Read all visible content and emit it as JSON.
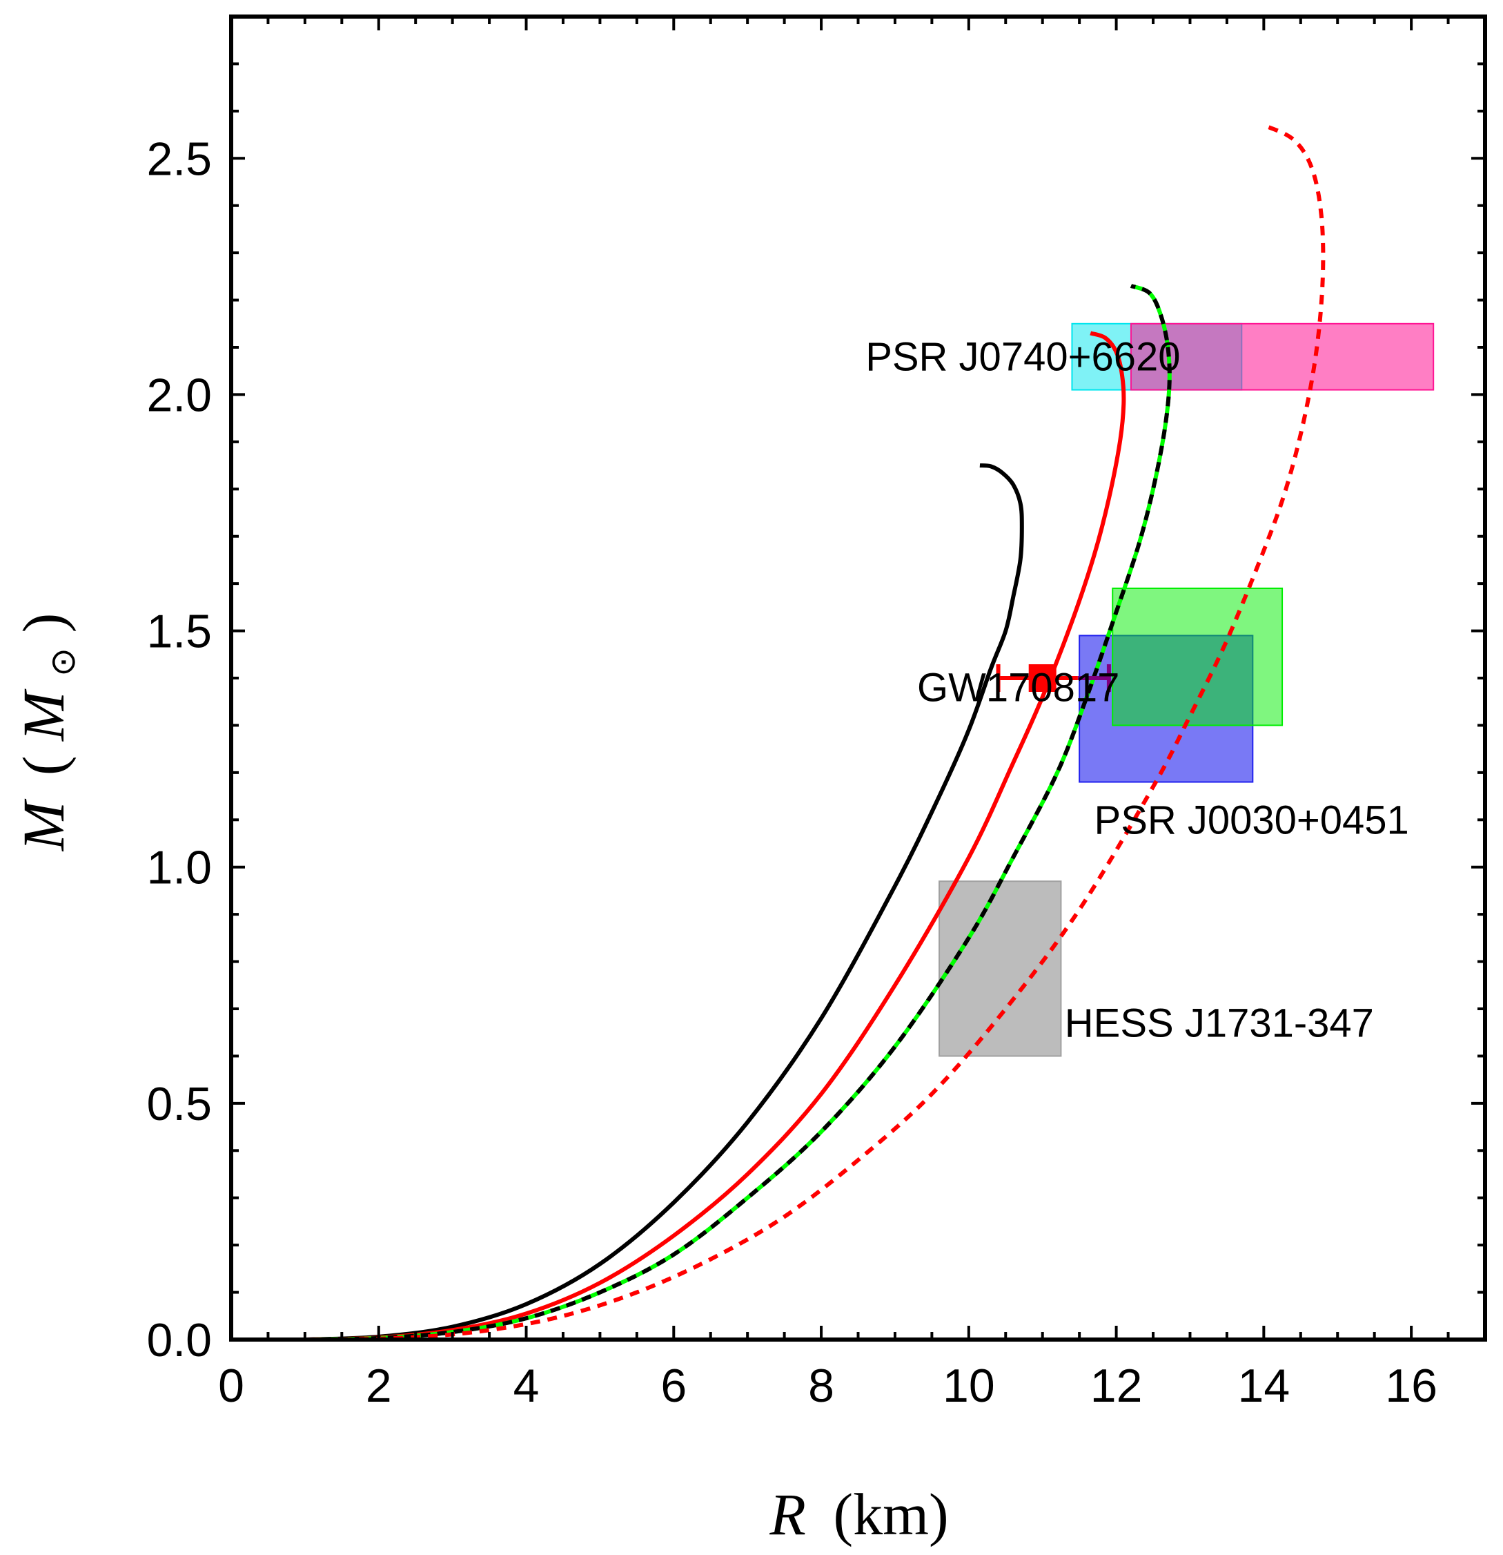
{
  "chart_data": {
    "type": "line",
    "title": "",
    "xlabel": {
      "symbol": "R",
      "unit": "(km)"
    },
    "ylabel": {
      "symbol": "M",
      "unit_open": "(",
      "unit_symbol": "M",
      "unit_sub": "⊙",
      "unit_close": ")"
    },
    "xlim": [
      0,
      17
    ],
    "ylim": [
      0,
      2.8
    ],
    "x_ticks": [
      0,
      2,
      4,
      6,
      8,
      10,
      12,
      14,
      16
    ],
    "x_tick_labels": [
      "0",
      "2",
      "4",
      "6",
      "8",
      "10",
      "12",
      "14",
      "16"
    ],
    "y_ticks": [
      0,
      0.5,
      1.0,
      1.5,
      2.0,
      2.5
    ],
    "y_tick_labels": [
      "0.0",
      "0.5",
      "1.0",
      "1.5",
      "2.0",
      "2.5"
    ],
    "grid": false,
    "regions": [
      {
        "name": "PSR J0740+6620 (a)",
        "x": [
          11.4,
          13.7
        ],
        "y": [
          2.01,
          2.15
        ],
        "color": "#00e5ee",
        "opacity": 0.5
      },
      {
        "name": "PSR J0740+6620 (b)",
        "x": [
          12.2,
          16.3
        ],
        "y": [
          2.01,
          2.15
        ],
        "color": "#ff1493",
        "opacity": 0.55
      },
      {
        "name": "PSR J0030+0451 (a)",
        "x": [
          11.5,
          13.85
        ],
        "y": [
          1.18,
          1.49
        ],
        "color": "#2020ee",
        "opacity": 0.6
      },
      {
        "name": "PSR J0030+0451 (b)",
        "x": [
          11.95,
          14.25
        ],
        "y": [
          1.3,
          1.59
        ],
        "color": "#00ee00",
        "opacity": 0.5
      },
      {
        "name": "HESS J1731-347",
        "x": [
          9.6,
          11.25
        ],
        "y": [
          0.6,
          0.97
        ],
        "color": "#a0a0a0",
        "opacity": 0.7
      }
    ],
    "errorbar": {
      "name": "GW170817",
      "x": 11.0,
      "y": 1.4,
      "xerr": [
        0.6,
        0.9
      ],
      "color": "#ff0000",
      "tail_color": "#800080"
    },
    "annotations": [
      {
        "text": "PSR J0740+6620",
        "x": 8.6,
        "y": 2.08
      },
      {
        "text": "GW170817",
        "x": 9.3,
        "y": 1.38
      },
      {
        "text": "PSR J0030+0451",
        "x": 11.7,
        "y": 1.1
      },
      {
        "text": "HESS J1731-347",
        "x": 11.3,
        "y": 0.67
      }
    ],
    "series": [
      {
        "name": "black-solid",
        "color": "#000000",
        "dash": "none",
        "x": [
          1.0,
          2.0,
          3.0,
          4.0,
          5.0,
          6.0,
          7.0,
          8.0,
          9.0,
          9.6,
          10.0,
          10.3,
          10.5,
          10.6,
          10.7,
          10.72,
          10.7,
          10.6,
          10.45,
          10.3,
          10.15
        ],
        "y": [
          0.0,
          0.006,
          0.027,
          0.075,
          0.16,
          0.29,
          0.46,
          0.68,
          0.96,
          1.15,
          1.29,
          1.42,
          1.5,
          1.57,
          1.65,
          1.72,
          1.77,
          1.81,
          1.835,
          1.848,
          1.85
        ]
      },
      {
        "name": "red-solid",
        "color": "#ff0000",
        "dash": "none",
        "x": [
          1.0,
          2.0,
          3.0,
          4.0,
          5.0,
          6.0,
          7.0,
          8.0,
          9.0,
          10.0,
          10.6,
          11.0,
          11.4,
          11.7,
          11.9,
          12.05,
          12.1,
          12.08,
          12.0,
          11.85,
          11.65
        ],
        "y": [
          0.0,
          0.004,
          0.02,
          0.055,
          0.12,
          0.22,
          0.35,
          0.52,
          0.75,
          1.02,
          1.22,
          1.36,
          1.52,
          1.66,
          1.78,
          1.9,
          1.98,
          2.04,
          2.09,
          2.12,
          2.13
        ]
      },
      {
        "name": "green-solid",
        "color": "#00ff00",
        "dash": "none",
        "x": [
          1.0,
          2.0,
          3.0,
          4.0,
          5.0,
          6.0,
          7.0,
          8.0,
          9.0,
          10.0,
          10.6,
          11.2,
          11.6,
          12.0,
          12.3,
          12.5,
          12.65,
          12.72,
          12.7,
          12.6,
          12.45,
          12.2
        ],
        "y": [
          0.0,
          0.003,
          0.016,
          0.045,
          0.1,
          0.18,
          0.3,
          0.44,
          0.62,
          0.85,
          1.02,
          1.2,
          1.36,
          1.54,
          1.68,
          1.8,
          1.92,
          2.02,
          2.1,
          2.17,
          2.215,
          2.23
        ]
      },
      {
        "name": "black-dashed",
        "color": "#000000",
        "dash": "14 10",
        "x": [
          1.0,
          2.0,
          3.0,
          4.0,
          5.0,
          6.0,
          7.0,
          8.0,
          9.0,
          10.0,
          10.6,
          11.2,
          11.6,
          12.0,
          12.3,
          12.5,
          12.65,
          12.72,
          12.7,
          12.6,
          12.45,
          12.2
        ],
        "y": [
          0.0,
          0.003,
          0.016,
          0.045,
          0.1,
          0.18,
          0.3,
          0.44,
          0.62,
          0.85,
          1.02,
          1.2,
          1.36,
          1.54,
          1.68,
          1.8,
          1.92,
          2.02,
          2.1,
          2.17,
          2.215,
          2.23
        ]
      },
      {
        "name": "red-dashed",
        "color": "#ff0000",
        "dash": "14 11",
        "x": [
          1.5,
          2.5,
          3.5,
          4.5,
          5.5,
          6.5,
          7.5,
          8.5,
          9.5,
          10.5,
          11.5,
          12.5,
          13.0,
          13.5,
          14.0,
          14.3,
          14.55,
          14.72,
          14.8,
          14.78,
          14.65,
          14.4,
          14.0
        ],
        "y": [
          0.0,
          0.005,
          0.02,
          0.05,
          0.1,
          0.17,
          0.26,
          0.38,
          0.52,
          0.7,
          0.91,
          1.17,
          1.32,
          1.48,
          1.67,
          1.8,
          1.95,
          2.1,
          2.25,
          2.38,
          2.48,
          2.54,
          2.57
        ]
      }
    ]
  }
}
